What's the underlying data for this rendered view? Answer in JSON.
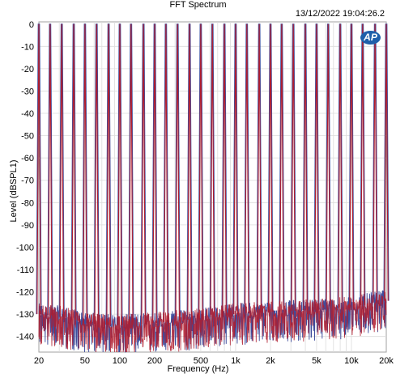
{
  "header": {
    "title": "FFT Spectrum",
    "timestamp": "13/12/2022 19:04:26.2",
    "logo_text": "AP"
  },
  "colors": {
    "series_blue": "#3f4d9c",
    "series_red": "#b01c2e",
    "grid": "#dcdcdc"
  },
  "chart_data": {
    "type": "line",
    "title": "FFT Spectrum",
    "xlabel": "Frequency (Hz)",
    "ylabel": "Level (dBSPL1)",
    "xscale": "log",
    "xlim": [
      20,
      20000
    ],
    "ylim": [
      -147,
      1
    ],
    "grid": true,
    "x_ticks": [
      {
        "value": 20,
        "label": "20"
      },
      {
        "value": 50,
        "label": "50"
      },
      {
        "value": 100,
        "label": "100"
      },
      {
        "value": 200,
        "label": "200"
      },
      {
        "value": 500,
        "label": "500"
      },
      {
        "value": 1000,
        "label": "1k"
      },
      {
        "value": 2000,
        "label": "2k"
      },
      {
        "value": 5000,
        "label": "5k"
      },
      {
        "value": 10000,
        "label": "10k"
      },
      {
        "value": 20000,
        "label": "20k"
      }
    ],
    "y_ticks": [
      0,
      -10,
      -20,
      -30,
      -40,
      -50,
      -60,
      -70,
      -80,
      -90,
      -100,
      -110,
      -120,
      -130,
      -140
    ],
    "series": [
      {
        "color": "#3f4d9c",
        "tones_hz": [
          20,
          25,
          31.5,
          40,
          50,
          63,
          80,
          100,
          125,
          160,
          200,
          250,
          315,
          400,
          500,
          630,
          800,
          1000,
          1250,
          1600,
          2000,
          2500,
          3150,
          4000,
          5000,
          6300,
          8000,
          10000,
          12500,
          16000,
          20000
        ],
        "tone_level_db": 0,
        "noise_floor": {
          "frequency_hz": [
            20,
            30,
            50,
            100,
            200,
            500,
            1000,
            2000,
            5000,
            10000,
            15000,
            20000
          ],
          "level_db": [
            -130,
            -131,
            -134,
            -135,
            -134,
            -132,
            -130,
            -129,
            -128,
            -127,
            -125,
            -124
          ]
        }
      },
      {
        "color": "#b01c2e",
        "tones_hz": [
          20,
          25,
          31.5,
          40,
          50,
          63,
          80,
          100,
          125,
          160,
          200,
          250,
          315,
          400,
          500,
          630,
          800,
          1000,
          1250,
          1600,
          2000,
          2500,
          3150,
          4000,
          5000,
          6300,
          8000,
          10000,
          12500,
          16000,
          20000
        ],
        "tone_level_db": 0,
        "noise_floor": {
          "frequency_hz": [
            20,
            30,
            50,
            100,
            200,
            500,
            1000,
            2000,
            5000,
            10000,
            15000,
            20000
          ],
          "level_db": [
            -130,
            -131,
            -134,
            -135,
            -134,
            -132,
            -130,
            -129,
            -128,
            -127,
            -125,
            -124
          ]
        }
      }
    ]
  }
}
